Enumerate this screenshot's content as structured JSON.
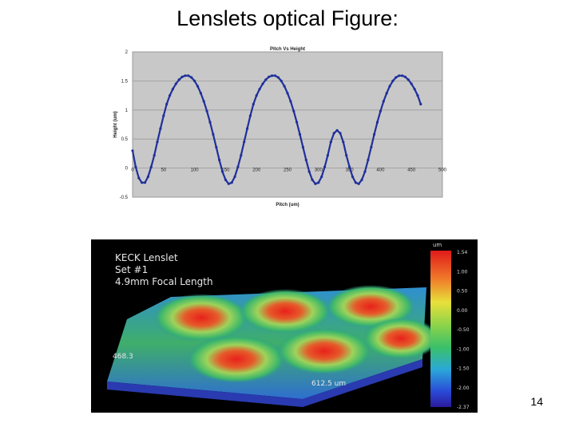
{
  "slide": {
    "title": "Lenslets optical Figure:",
    "page_number": "14"
  },
  "chart_data": [
    {
      "type": "line",
      "title": "Pitch Vs Height",
      "xlabel": "Pitch (um)",
      "ylabel": "Height (um)",
      "xlim": [
        0,
        500
      ],
      "ylim": [
        -0.5,
        2
      ],
      "xticks": [
        0,
        50,
        100,
        150,
        200,
        250,
        300,
        350,
        400,
        450,
        500
      ],
      "yticks": [
        -0.5,
        0,
        0.5,
        1,
        1.5,
        2
      ],
      "grid": true,
      "series_color": "#1f2f9a",
      "x": [
        0,
        5,
        10,
        15,
        20,
        25,
        30,
        35,
        40,
        45,
        50,
        55,
        60,
        65,
        70,
        75,
        80,
        85,
        90,
        95,
        100,
        105,
        110,
        115,
        120,
        125,
        130,
        135,
        140,
        145,
        150,
        155,
        160,
        165,
        170,
        175,
        180,
        185,
        190,
        195,
        200,
        205,
        210,
        215,
        220,
        225,
        230,
        235,
        240,
        245,
        250,
        255,
        260,
        265,
        270,
        275,
        280,
        285,
        290,
        295,
        300,
        305,
        310,
        315,
        320,
        325,
        330,
        335,
        340,
        345,
        350,
        355,
        360,
        365,
        370,
        375,
        380,
        385,
        390,
        395,
        400,
        405,
        410,
        415,
        420,
        425,
        430,
        435,
        440,
        445,
        450,
        455,
        460,
        465
      ],
      "y": [
        0.3,
        0.02,
        -0.17,
        -0.25,
        -0.25,
        -0.15,
        0.02,
        0.22,
        0.45,
        0.68,
        0.9,
        1.1,
        1.25,
        1.36,
        1.45,
        1.52,
        1.57,
        1.59,
        1.59,
        1.56,
        1.5,
        1.41,
        1.29,
        1.15,
        0.98,
        0.79,
        0.58,
        0.36,
        0.14,
        -0.06,
        -0.2,
        -0.27,
        -0.25,
        -0.15,
        0.02,
        0.22,
        0.45,
        0.68,
        0.9,
        1.1,
        1.25,
        1.36,
        1.45,
        1.52,
        1.57,
        1.59,
        1.59,
        1.56,
        1.5,
        1.41,
        1.29,
        1.15,
        0.98,
        0.79,
        0.58,
        0.36,
        0.14,
        -0.06,
        -0.2,
        -0.27,
        -0.25,
        -0.15,
        0.02,
        0.22,
        0.45,
        0.6,
        0.65,
        0.6,
        0.45,
        0.22,
        0.02,
        -0.15,
        -0.25,
        -0.27,
        -0.2,
        -0.06,
        0.14,
        0.36,
        0.58,
        0.79,
        0.98,
        1.15,
        1.29,
        1.41,
        1.5,
        1.56,
        1.59,
        1.59,
        1.57,
        1.52,
        1.45,
        1.36,
        1.25,
        1.1
      ]
    },
    {
      "type": "heatmap",
      "title_lines": [
        "KECK Lenslet",
        "Set #1",
        "4.9mm Focal Length"
      ],
      "colorbar_unit": "um",
      "colorbar_ticks": [
        "1.54",
        "1.00",
        "0.50",
        "0.00",
        "-0.50",
        "-1.00",
        "-1.50",
        "-2.00",
        "-2.37"
      ],
      "dimension_labels": [
        "468.3",
        "612.5 um"
      ]
    }
  ]
}
